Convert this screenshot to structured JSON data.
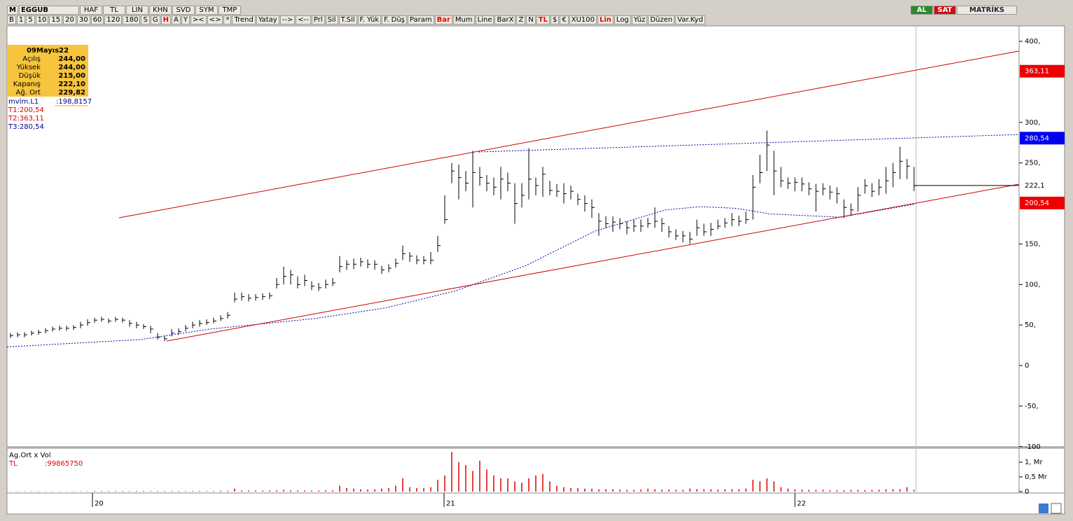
{
  "toolbar": {
    "symbol": "EGGUB",
    "fields": [
      "HAF",
      "TL",
      "LIN",
      "KHN",
      "SVD",
      "SYM",
      "TMP"
    ],
    "actions": [
      "AL",
      "SAT"
    ],
    "brand": "MATRİKS",
    "buttons": [
      "B",
      "1",
      "5",
      "10",
      "15",
      "20",
      "30",
      "60",
      "120",
      "180",
      "S",
      "G",
      "H",
      "A",
      "Y",
      "><",
      "<>",
      "*",
      "Trend",
      "Yatay",
      "-->",
      "<--",
      "Prl",
      "Sil",
      "T.Sil",
      "F. Yük",
      "F. Düş",
      "Param",
      "Bar",
      "Mum",
      "Line",
      "BarX",
      "Z",
      "N",
      "TL",
      "$",
      "€",
      "XU100",
      "Lin",
      "Log",
      "Yüz",
      "Düzen",
      "Var.Kyd"
    ],
    "active": [
      "H",
      "Bar",
      "TL",
      "Lin"
    ]
  },
  "info": {
    "date": "09Mayıs22",
    "rows": [
      [
        "Açılış",
        "244,00"
      ],
      [
        "Yüksek",
        "244,00"
      ],
      [
        "Düşük",
        "215,00"
      ],
      [
        "Kapanış",
        "222,10"
      ],
      [
        "Ağ. Ort",
        "229,82"
      ]
    ],
    "indicator": "mvlm.L1",
    "indicator_value": ":198,8157",
    "targets": [
      "T1:200,54",
      "T2:363,11",
      "T3:280,54"
    ]
  },
  "chart": {
    "type": "ohlc",
    "close": [
      37,
      38,
      38,
      40,
      41,
      43,
      45,
      46,
      46,
      47,
      50,
      53,
      56,
      57,
      55,
      57,
      56,
      52,
      50,
      48,
      45,
      35,
      33,
      40,
      42,
      46,
      50,
      52,
      53,
      55,
      58,
      62,
      82,
      85,
      83,
      84,
      85,
      86,
      100,
      110,
      112,
      100,
      105,
      98,
      96,
      100,
      102,
      122,
      125,
      125,
      128,
      125,
      125,
      118,
      120,
      126,
      138,
      135,
      130,
      130,
      130,
      148,
      180,
      240,
      232,
      225,
      238,
      232,
      225,
      220,
      230,
      225,
      200,
      210,
      230,
      222,
      236,
      216,
      215,
      212,
      215,
      205,
      200,
      195,
      178,
      175,
      177,
      175,
      170,
      172,
      172,
      175,
      178,
      175,
      165,
      160,
      160,
      156,
      170,
      165,
      168,
      172,
      176,
      180,
      178,
      180,
      220,
      238,
      272,
      240,
      228,
      225,
      226,
      224,
      218,
      215,
      218,
      214,
      212,
      195,
      192,
      210,
      222,
      215,
      220,
      228,
      238,
      252,
      246,
      222
    ],
    "high": [
      40,
      41,
      41,
      43,
      44,
      46,
      48,
      49,
      49,
      50,
      54,
      57,
      59,
      60,
      58,
      60,
      59,
      56,
      54,
      51,
      49,
      40,
      37,
      45,
      46,
      50,
      54,
      56,
      57,
      59,
      62,
      66,
      90,
      90,
      88,
      88,
      89,
      90,
      108,
      122,
      118,
      110,
      112,
      104,
      102,
      106,
      108,
      135,
      130,
      132,
      133,
      131,
      130,
      123,
      125,
      132,
      148,
      140,
      136,
      135,
      140,
      160,
      210,
      250,
      248,
      240,
      265,
      245,
      235,
      232,
      245,
      238,
      225,
      225,
      268,
      232,
      245,
      228,
      224,
      225,
      222,
      212,
      210,
      205,
      188,
      184,
      184,
      182,
      178,
      180,
      180,
      182,
      195,
      182,
      172,
      168,
      166,
      165,
      180,
      175,
      176,
      180,
      182,
      188,
      185,
      190,
      235,
      260,
      290,
      265,
      245,
      232,
      232,
      232,
      226,
      224,
      225,
      222,
      220,
      205,
      200,
      220,
      230,
      225,
      230,
      245,
      250,
      270,
      255,
      245
    ],
    "low": [
      34,
      35,
      35,
      37,
      38,
      40,
      42,
      43,
      43,
      44,
      46,
      49,
      53,
      54,
      52,
      54,
      53,
      48,
      46,
      45,
      40,
      32,
      30,
      36,
      38,
      42,
      46,
      48,
      50,
      52,
      55,
      58,
      78,
      80,
      79,
      80,
      81,
      82,
      95,
      100,
      100,
      95,
      98,
      93,
      92,
      95,
      98,
      115,
      118,
      119,
      122,
      120,
      118,
      113,
      115,
      121,
      130,
      128,
      125,
      125,
      125,
      140,
      175,
      225,
      205,
      215,
      195,
      222,
      215,
      210,
      205,
      215,
      175,
      195,
      205,
      210,
      208,
      210,
      208,
      200,
      205,
      198,
      190,
      182,
      160,
      170,
      165,
      168,
      162,
      165,
      165,
      170,
      170,
      165,
      158,
      155,
      152,
      150,
      160,
      160,
      160,
      168,
      170,
      172,
      172,
      175,
      180,
      225,
      240,
      210,
      220,
      218,
      215,
      215,
      210,
      190,
      210,
      205,
      200,
      182,
      185,
      190,
      212,
      208,
      210,
      212,
      220,
      230,
      230,
      215
    ],
    "volume": [
      0.01,
      0.01,
      0.01,
      0.01,
      0.01,
      0.01,
      0.01,
      0.01,
      0.01,
      0.01,
      0.01,
      0.01,
      0.02,
      0.02,
      0.02,
      0.02,
      0.02,
      0.02,
      0.02,
      0.02,
      0.02,
      0.02,
      0.02,
      0.02,
      0.02,
      0.02,
      0.02,
      0.02,
      0.02,
      0.02,
      0.03,
      0.03,
      0.1,
      0.04,
      0.04,
      0.04,
      0.04,
      0.04,
      0.05,
      0.06,
      0.05,
      0.04,
      0.04,
      0.04,
      0.04,
      0.05,
      0.05,
      0.2,
      0.12,
      0.1,
      0.08,
      0.07,
      0.08,
      0.1,
      0.12,
      0.2,
      0.45,
      0.15,
      0.12,
      0.12,
      0.15,
      0.4,
      0.55,
      1.35,
      1.0,
      0.9,
      0.7,
      1.05,
      0.75,
      0.55,
      0.45,
      0.45,
      0.35,
      0.3,
      0.45,
      0.55,
      0.6,
      0.35,
      0.2,
      0.15,
      0.12,
      0.12,
      0.1,
      0.1,
      0.08,
      0.08,
      0.08,
      0.07,
      0.06,
      0.06,
      0.07,
      0.1,
      0.08,
      0.07,
      0.07,
      0.06,
      0.06,
      0.1,
      0.08,
      0.08,
      0.08,
      0.07,
      0.08,
      0.08,
      0.08,
      0.1,
      0.4,
      0.35,
      0.45,
      0.35,
      0.15,
      0.1,
      0.08,
      0.07,
      0.06,
      0.06,
      0.06,
      0.05,
      0.05,
      0.05,
      0.06,
      0.06,
      0.05,
      0.06,
      0.06,
      0.08,
      0.08,
      0.08,
      0.15,
      0.06
    ],
    "ma": {
      "index": [
        -0.5,
        18.5,
        28.5,
        43.5,
        53.5,
        63.5,
        73.5,
        83.5,
        93.5,
        98.5,
        103.5,
        108.5,
        118.5,
        129
      ],
      "values": [
        23,
        32,
        45,
        58,
        71,
        92,
        123,
        166,
        192,
        196,
        194,
        187,
        183,
        199
      ]
    },
    "trendlines": [
      {
        "index": [
          15.5,
          144
        ],
        "values": [
          182.3,
          388
        ],
        "color": "#cc0000"
      },
      {
        "index": [
          22.3,
          144
        ],
        "values": [
          30.2,
          223.8
        ],
        "color": "#cc0000"
      },
      {
        "index": [
          66.8,
          144
        ],
        "values": [
          263.5,
          285
        ],
        "color": "#0000aa",
        "dashed": true
      }
    ],
    "markers": [
      {
        "value": 363.11,
        "label": "363,11",
        "color": "#ee0000"
      },
      {
        "value": 280.54,
        "label": "280,54",
        "color": "#0000ee"
      },
      {
        "value": 222.1,
        "label": "222,1"
      },
      {
        "value": 200.54,
        "label": "200,54",
        "color": "#ee0000"
      }
    ],
    "yticks": [
      {
        "value": 400,
        "label": "400,"
      },
      {
        "value": 300,
        "label": "300,"
      },
      {
        "value": 250,
        "label": "250,"
      },
      {
        "value": 150,
        "label": "150,"
      },
      {
        "value": 100,
        "label": "100,"
      },
      {
        "value": 50,
        "label": "50,"
      },
      0,
      {
        "value": -50,
        "label": "-50,"
      },
      {
        "value": -100,
        "label": "-100"
      }
    ],
    "ylim": [
      -100,
      400
    ],
    "xticks": [
      {
        "value": 11.7,
        "label": "20"
      },
      {
        "value": 61.9,
        "label": "21"
      },
      {
        "value": 112,
        "label": "22"
      }
    ],
    "volume_title": "Ag.Ort x Vol",
    "volume_series": "TL",
    "volume_value": ":99865750",
    "vticks": [
      {
        "value": 1,
        "label": "1, Mr"
      },
      {
        "value": 0.5,
        "label": "0,5 Mr"
      },
      0
    ]
  }
}
